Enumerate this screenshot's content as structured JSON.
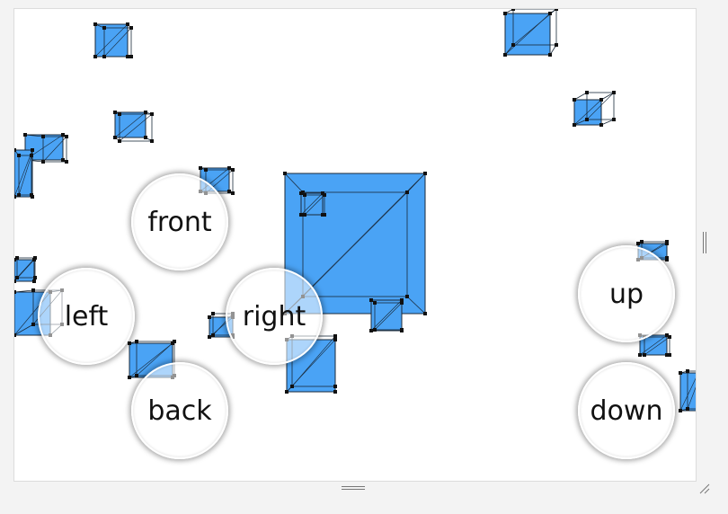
{
  "controls": {
    "front": "front",
    "left": "left",
    "right": "right",
    "back": "back",
    "up": "up",
    "down": "down"
  },
  "colors": {
    "cube_fill": "#4aa3f5",
    "cube_edge": "#1a2a3a",
    "vertex": "#111111",
    "background": "#ffffff"
  }
}
